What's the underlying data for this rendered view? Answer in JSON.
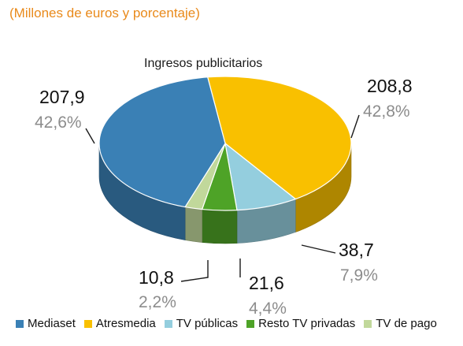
{
  "subtitle": "(Millones de euros y porcentaje)",
  "chart_data": {
    "type": "pie",
    "title": "Ingresos publicitarios",
    "series": [
      {
        "name": "Mediaset",
        "value": 207.9,
        "value_label": "207,9",
        "percent": 42.6,
        "percent_label": "42,6%",
        "color": "#3a80b5"
      },
      {
        "name": "Atresmedia",
        "value": 208.8,
        "value_label": "208,8",
        "percent": 42.8,
        "percent_label": "42,8%",
        "color": "#f9c000"
      },
      {
        "name": "TV públicas",
        "value": 38.7,
        "value_label": "38,7",
        "percent": 7.9,
        "percent_label": "7,9%",
        "color": "#94cede"
      },
      {
        "name": "Resto TV privadas",
        "value": 21.6,
        "value_label": "21,6",
        "percent": 4.4,
        "percent_label": "4,4%",
        "color": "#4ea327"
      },
      {
        "name": "TV de pago",
        "value": 10.8,
        "value_label": "10,8",
        "percent": 2.2,
        "percent_label": "2,2%",
        "color": "#c1d89b"
      }
    ],
    "legend_position": "bottom",
    "style": "3d"
  }
}
